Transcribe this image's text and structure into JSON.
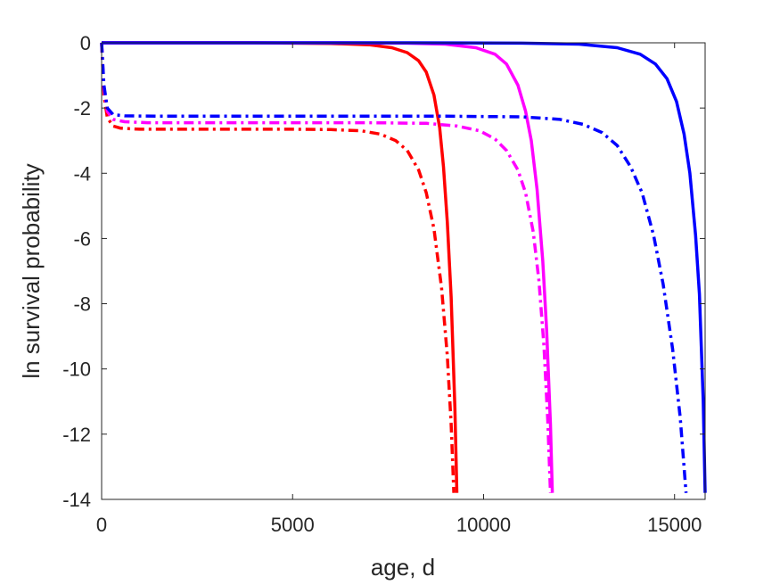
{
  "chart_data": {
    "type": "line",
    "title": "",
    "xlabel": "age, d",
    "ylabel": "ln survival probability",
    "xlim": [
      0,
      15800
    ],
    "ylim": [
      -14,
      0
    ],
    "xticks": [
      0,
      5000,
      10000,
      15000
    ],
    "xtick_labels": [
      "0",
      "5000",
      "10000",
      "15000"
    ],
    "yticks": [
      0,
      -2,
      -4,
      -6,
      -8,
      -10,
      -12,
      -14
    ],
    "ytick_labels": [
      "0",
      "-2",
      "-4",
      "-6",
      "-8",
      "-10",
      "-12",
      "-14"
    ],
    "grid": false,
    "legend": "none",
    "series": [
      {
        "color": "#ff0000",
        "style": "solid",
        "x": [
          0,
          4000,
          6000,
          7000,
          7600,
          8000,
          8300,
          8500,
          8700,
          8850,
          8950,
          9050,
          9150,
          9250,
          9300
        ],
        "y": [
          0,
          0,
          -0.02,
          -0.06,
          -0.15,
          -0.3,
          -0.55,
          -0.9,
          -1.6,
          -2.6,
          -3.8,
          -5.5,
          -7.8,
          -11.2,
          -13.8
        ]
      },
      {
        "color": "#ff0000",
        "style": "dashdot",
        "x": [
          0,
          60,
          150,
          300,
          500,
          1000,
          3000,
          5000,
          6000,
          6800,
          7300,
          7700,
          8000,
          8300,
          8500,
          8700,
          8900,
          9050,
          9150,
          9220
        ],
        "y": [
          0,
          -1.6,
          -2.3,
          -2.55,
          -2.62,
          -2.65,
          -2.65,
          -2.65,
          -2.66,
          -2.7,
          -2.8,
          -3.0,
          -3.3,
          -3.9,
          -4.6,
          -5.7,
          -7.5,
          -9.6,
          -11.7,
          -13.8
        ]
      },
      {
        "color": "#ff00ff",
        "style": "solid",
        "x": [
          0,
          6000,
          8000,
          9000,
          9800,
          10300,
          10600,
          10900,
          11100,
          11250,
          11400,
          11550,
          11650,
          11750,
          11800
        ],
        "y": [
          0,
          0,
          -0.01,
          -0.04,
          -0.15,
          -0.35,
          -0.65,
          -1.3,
          -2.1,
          -3.0,
          -4.5,
          -6.7,
          -8.8,
          -11.7,
          -13.8
        ]
      },
      {
        "color": "#ff00ff",
        "style": "dashdot",
        "x": [
          0,
          60,
          150,
          300,
          600,
          1200,
          4000,
          7000,
          8500,
          9300,
          9900,
          10300,
          10600,
          10900,
          11100,
          11300,
          11450,
          11580,
          11680,
          11750
        ],
        "y": [
          0,
          -1.4,
          -2.1,
          -2.35,
          -2.42,
          -2.45,
          -2.45,
          -2.45,
          -2.47,
          -2.55,
          -2.7,
          -2.95,
          -3.3,
          -3.9,
          -4.6,
          -5.8,
          -7.3,
          -9.3,
          -11.6,
          -13.8
        ]
      },
      {
        "color": "#0000ff",
        "style": "solid",
        "x": [
          0,
          8000,
          11000,
          12500,
          13500,
          14100,
          14500,
          14800,
          15050,
          15250,
          15400,
          15550,
          15650,
          15750,
          15800
        ],
        "y": [
          0,
          0,
          -0.01,
          -0.04,
          -0.15,
          -0.35,
          -0.65,
          -1.1,
          -1.8,
          -2.8,
          -4.0,
          -5.9,
          -7.7,
          -11.0,
          -13.8
        ]
      },
      {
        "color": "#0000ff",
        "style": "dashdot",
        "x": [
          0,
          60,
          150,
          300,
          600,
          1500,
          5000,
          9000,
          11000,
          12000,
          12600,
          13100,
          13500,
          13850,
          14150,
          14450,
          14700,
          14950,
          15150,
          15300
        ],
        "y": [
          0,
          -1.3,
          -2.0,
          -2.2,
          -2.24,
          -2.25,
          -2.25,
          -2.25,
          -2.27,
          -2.35,
          -2.5,
          -2.75,
          -3.15,
          -3.8,
          -4.6,
          -5.9,
          -7.4,
          -9.4,
          -11.5,
          -13.8
        ]
      }
    ]
  }
}
